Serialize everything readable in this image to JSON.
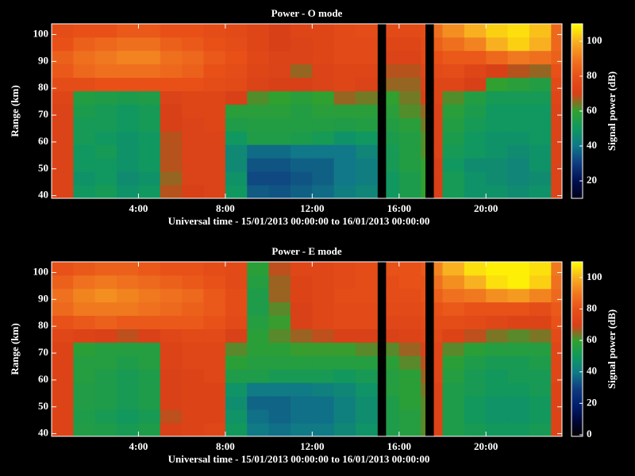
{
  "chart_data": [
    {
      "type": "heatmap",
      "title": "Power - O mode",
      "xlabel": "Universal time - 15/01/2013 00:00:00 to 16/01/2013 00:00:00",
      "ylabel": "Range (km)",
      "colorbar_label": "Signal power (dB)",
      "xbins": [
        0,
        1,
        2,
        3,
        4,
        5,
        6,
        7,
        8,
        9,
        10,
        11,
        12,
        13,
        14,
        15,
        15.4,
        16,
        17,
        17.2,
        17.6,
        18,
        19,
        20,
        21,
        22,
        23,
        23.5
      ],
      "ybins": [
        39,
        44,
        49,
        54,
        59,
        64,
        69,
        74,
        79,
        84,
        89,
        94,
        99,
        104
      ],
      "xlim": [
        0,
        23.5
      ],
      "ylim": [
        39,
        104
      ],
      "xticks": [
        {
          "value": 4,
          "label": "4:00"
        },
        {
          "value": 8,
          "label": "8:00"
        },
        {
          "value": 12,
          "label": "12:00"
        },
        {
          "value": 16,
          "label": "16:00"
        },
        {
          "value": 20,
          "label": "20:00"
        }
      ],
      "yticks": [
        40,
        50,
        60,
        70,
        80,
        90,
        100
      ],
      "zlim": [
        10,
        110
      ],
      "zticks": [
        20,
        40,
        60,
        80,
        100
      ],
      "colormap": [
        "#000018",
        "#001050",
        "#103c80",
        "#107888",
        "#109860",
        "#30a030",
        "#d84018",
        "#e85018",
        "#f07820",
        "#f8b020",
        "#ffff00"
      ],
      "values": [
        [
          72,
          72,
          72,
          72,
          72,
          72,
          72,
          74,
          78,
          82,
          84,
          80,
          78
        ],
        [
          50,
          48,
          50,
          50,
          52,
          52,
          54,
          56,
          78,
          86,
          88,
          84,
          80
        ],
        [
          52,
          50,
          50,
          52,
          50,
          52,
          52,
          55,
          80,
          88,
          90,
          86,
          80
        ],
        [
          48,
          46,
          48,
          48,
          48,
          50,
          50,
          54,
          80,
          88,
          92,
          88,
          82
        ],
        [
          50,
          48,
          50,
          50,
          50,
          52,
          52,
          55,
          80,
          88,
          92,
          88,
          82
        ],
        [
          68,
          66,
          68,
          68,
          68,
          70,
          70,
          72,
          80,
          86,
          88,
          84,
          80
        ],
        [
          70,
          72,
          72,
          72,
          72,
          72,
          74,
          74,
          80,
          84,
          86,
          82,
          80
        ],
        [
          72,
          72,
          72,
          72,
          72,
          74,
          74,
          74,
          78,
          80,
          82,
          80,
          78
        ],
        [
          50,
          48,
          45,
          45,
          50,
          55,
          58,
          70,
          76,
          78,
          80,
          78,
          76
        ],
        [
          35,
          32,
          34,
          38,
          55,
          56,
          58,
          62,
          72,
          74,
          75,
          74,
          74
        ],
        [
          34,
          32,
          34,
          38,
          55,
          56,
          58,
          60,
          70,
          72,
          72,
          70,
          70
        ],
        [
          36,
          34,
          36,
          40,
          54,
          56,
          56,
          58,
          70,
          66,
          72,
          72,
          74
        ],
        [
          38,
          36,
          36,
          40,
          52,
          56,
          58,
          60,
          72,
          72,
          74,
          74,
          74
        ],
        [
          42,
          40,
          40,
          40,
          48,
          55,
          58,
          66,
          74,
          74,
          76,
          76,
          76
        ],
        [
          44,
          42,
          42,
          44,
          50,
          56,
          58,
          64,
          72,
          74,
          76,
          76,
          78
        ],
        [
          null,
          null,
          null,
          null,
          null,
          null,
          null,
          null,
          null,
          null,
          null,
          null,
          null
        ],
        [
          50,
          50,
          52,
          52,
          54,
          56,
          58,
          60,
          66,
          68,
          72,
          74,
          76
        ],
        [
          54,
          54,
          56,
          56,
          56,
          58,
          62,
          64,
          66,
          68,
          72,
          74,
          76
        ],
        [
          60,
          60,
          60,
          62,
          62,
          64,
          66,
          70,
          72,
          74,
          76,
          76,
          78
        ],
        [
          null,
          null,
          null,
          null,
          null,
          null,
          null,
          null,
          null,
          null,
          null,
          null,
          null
        ],
        [
          70,
          70,
          70,
          72,
          72,
          72,
          72,
          74,
          74,
          76,
          80,
          84,
          88
        ],
        [
          52,
          52,
          50,
          52,
          54,
          56,
          58,
          62,
          74,
          78,
          82,
          88,
          94
        ],
        [
          48,
          48,
          46,
          50,
          50,
          52,
          54,
          56,
          70,
          74,
          82,
          92,
          100
        ],
        [
          48,
          46,
          46,
          48,
          48,
          50,
          50,
          52,
          60,
          70,
          86,
          100,
          104
        ],
        [
          46,
          44,
          44,
          46,
          48,
          50,
          50,
          52,
          58,
          68,
          90,
          104,
          106
        ],
        [
          48,
          46,
          48,
          48,
          50,
          50,
          50,
          52,
          56,
          66,
          88,
          100,
          102
        ],
        [
          72,
          72,
          72,
          72,
          72,
          72,
          72,
          74,
          76,
          80,
          84,
          86,
          86
        ]
      ]
    },
    {
      "type": "heatmap",
      "title": "Power - E mode",
      "xlabel": "Universal time - 15/01/2013 00:00:00 to 16/01/2013 00:00:00",
      "ylabel": "Range (km)",
      "colorbar_label": "Signal power (dB)",
      "xbins": [
        0,
        1,
        2,
        3,
        4,
        5,
        6,
        7,
        8,
        9,
        10,
        11,
        12,
        13,
        14,
        15,
        15.4,
        16,
        17,
        17.2,
        17.6,
        18,
        19,
        20,
        21,
        22,
        23,
        23.5
      ],
      "ybins": [
        39,
        44,
        49,
        54,
        59,
        64,
        69,
        74,
        79,
        84,
        89,
        94,
        99,
        104
      ],
      "xlim": [
        0,
        23.5
      ],
      "ylim": [
        39,
        104
      ],
      "xticks": [
        {
          "value": 4,
          "label": "4:00"
        },
        {
          "value": 8,
          "label": "8:00"
        },
        {
          "value": 12,
          "label": "12:00"
        },
        {
          "value": 16,
          "label": "16:00"
        },
        {
          "value": 20,
          "label": "20:00"
        }
      ],
      "yticks": [
        40,
        50,
        60,
        70,
        80,
        90,
        100
      ],
      "zlim": [
        -1,
        110
      ],
      "zticks": [
        0,
        20,
        40,
        60,
        80,
        100
      ],
      "colormap": [
        "#000000",
        "#000838",
        "#002070",
        "#103c80",
        "#107888",
        "#109860",
        "#30a030",
        "#d84018",
        "#e85018",
        "#f07820",
        "#f8b020",
        "#ffff00"
      ],
      "values": [
        [
          72,
          72,
          72,
          72,
          72,
          72,
          72,
          74,
          80,
          86,
          88,
          84,
          80
        ],
        [
          55,
          54,
          55,
          55,
          56,
          56,
          58,
          72,
          82,
          90,
          92,
          88,
          82
        ],
        [
          54,
          52,
          54,
          54,
          54,
          56,
          56,
          70,
          84,
          90,
          94,
          90,
          84
        ],
        [
          52,
          50,
          52,
          52,
          52,
          54,
          56,
          68,
          82,
          90,
          92,
          88,
          84
        ],
        [
          54,
          52,
          54,
          54,
          54,
          56,
          56,
          70,
          82,
          88,
          90,
          86,
          82
        ],
        [
          70,
          68,
          70,
          70,
          70,
          72,
          72,
          74,
          82,
          86,
          88,
          84,
          80
        ],
        [
          72,
          72,
          72,
          72,
          72,
          74,
          74,
          76,
          82,
          84,
          86,
          82,
          80
        ],
        [
          74,
          72,
          72,
          72,
          74,
          74,
          74,
          76,
          80,
          82,
          82,
          80,
          78
        ],
        [
          50,
          48,
          46,
          48,
          54,
          58,
          62,
          70,
          76,
          78,
          78,
          76,
          76
        ],
        [
          40,
          38,
          36,
          40,
          54,
          56,
          58,
          58,
          56,
          54,
          54,
          56,
          58
        ],
        [
          38,
          36,
          36,
          40,
          52,
          56,
          58,
          62,
          60,
          62,
          66,
          66,
          68
        ],
        [
          40,
          38,
          38,
          40,
          52,
          56,
          60,
          66,
          70,
          70,
          72,
          72,
          74
        ],
        [
          40,
          38,
          38,
          42,
          52,
          56,
          60,
          68,
          74,
          74,
          74,
          74,
          74
        ],
        [
          44,
          42,
          42,
          44,
          50,
          56,
          60,
          70,
          76,
          76,
          78,
          76,
          76
        ],
        [
          48,
          46,
          46,
          48,
          52,
          56,
          62,
          70,
          76,
          76,
          78,
          78,
          78
        ],
        [
          null,
          null,
          null,
          null,
          null,
          null,
          null,
          null,
          null,
          null,
          null,
          null,
          null
        ],
        [
          54,
          54,
          54,
          56,
          56,
          58,
          62,
          70,
          74,
          76,
          78,
          78,
          80
        ],
        [
          56,
          56,
          58,
          58,
          58,
          62,
          66,
          72,
          74,
          76,
          78,
          80,
          80
        ],
        [
          62,
          62,
          62,
          64,
          66,
          68,
          70,
          74,
          76,
          78,
          80,
          80,
          82
        ],
        [
          null,
          null,
          null,
          null,
          null,
          null,
          null,
          null,
          null,
          null,
          null,
          null,
          null
        ],
        [
          72,
          72,
          72,
          72,
          74,
          74,
          74,
          76,
          78,
          80,
          84,
          88,
          92
        ],
        [
          54,
          54,
          54,
          54,
          56,
          58,
          62,
          72,
          78,
          82,
          88,
          94,
          100
        ],
        [
          52,
          50,
          50,
          52,
          52,
          54,
          58,
          68,
          76,
          80,
          90,
          100,
          106
        ],
        [
          50,
          48,
          48,
          50,
          50,
          52,
          56,
          64,
          74,
          80,
          94,
          106,
          108
        ],
        [
          50,
          48,
          48,
          50,
          52,
          52,
          56,
          62,
          72,
          80,
          96,
          108,
          108
        ],
        [
          52,
          50,
          50,
          52,
          52,
          54,
          56,
          64,
          72,
          78,
          92,
          104,
          106
        ],
        [
          72,
          72,
          72,
          72,
          74,
          74,
          74,
          76,
          80,
          82,
          86,
          88,
          90
        ]
      ]
    }
  ]
}
